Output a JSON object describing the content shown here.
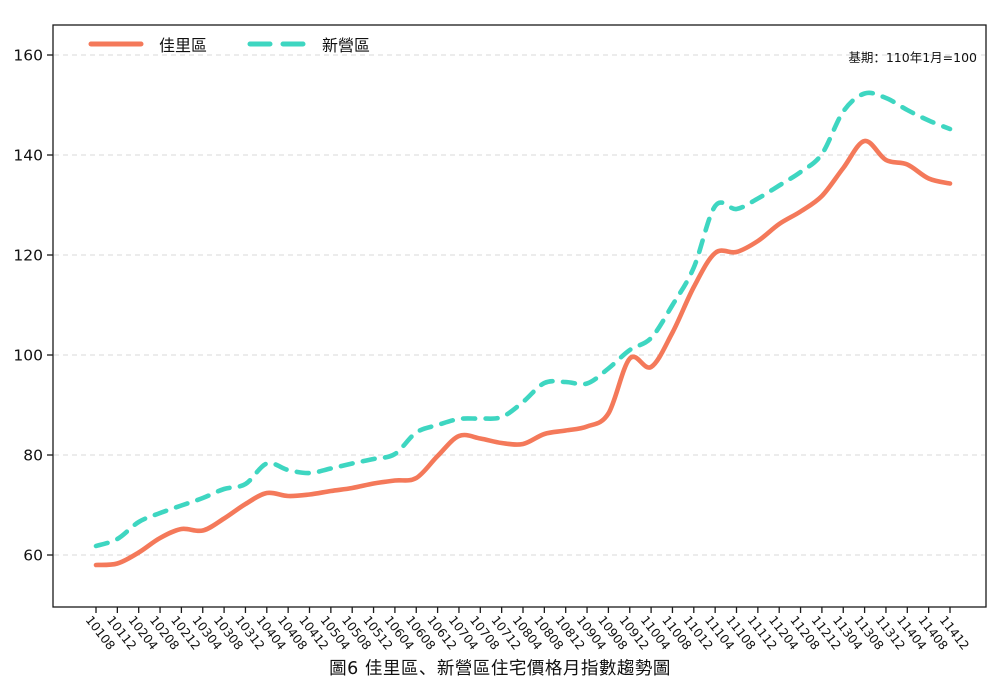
{
  "chart_data": {
    "type": "line",
    "title": "圖6  佳里區、新營區住宅價格月指數趨勢圖",
    "note": "基期：110年1月=100",
    "x_labels": [
      "10108",
      "10112",
      "10204",
      "10208",
      "10212",
      "10304",
      "10308",
      "10312",
      "10404",
      "10408",
      "10412",
      "10504",
      "10508",
      "10512",
      "10604",
      "10608",
      "10612",
      "10704",
      "10708",
      "10712",
      "10804",
      "10808",
      "10812",
      "10904",
      "10908",
      "10912",
      "11004",
      "11008",
      "11012",
      "11104",
      "11108",
      "11112",
      "11204",
      "11208",
      "11212",
      "11304",
      "11308",
      "11312",
      "11404",
      "11408",
      "11412"
    ],
    "yticks": [
      60,
      80,
      100,
      120,
      140,
      160
    ],
    "ylim": [
      49.6,
      166
    ],
    "grid": "horizontal-dashed",
    "legend_position": "top-left-inside",
    "series": [
      {
        "name": "佳里區",
        "color": "#F4795A",
        "style": "solid",
        "values": [
          58.0,
          58.3,
          60.5,
          63.4,
          65.2,
          64.9,
          67.3,
          70.2,
          72.4,
          71.8,
          72.1,
          72.8,
          73.4,
          74.3,
          74.9,
          75.4,
          79.8,
          83.8,
          83.3,
          82.4,
          82.2,
          84.2,
          84.9,
          85.7,
          88.3,
          99.3,
          97.6,
          104.5,
          113.6,
          120.4,
          120.6,
          122.8,
          126.2,
          128.7,
          131.8,
          137.4,
          142.8,
          139.0,
          138.1,
          135.3,
          134.3
        ]
      },
      {
        "name": "新營區",
        "color": "#3ED6C1",
        "style": "dashed",
        "values": [
          61.8,
          63.2,
          66.6,
          68.4,
          69.9,
          71.4,
          73.2,
          74.2,
          78.3,
          77.0,
          76.4,
          77.3,
          78.3,
          79.2,
          80.2,
          84.5,
          86.0,
          87.2,
          87.3,
          87.6,
          90.6,
          94.4,
          94.6,
          94.3,
          97.3,
          101.0,
          103.4,
          110.0,
          117.5,
          129.8,
          129.2,
          131.3,
          133.9,
          136.6,
          140.2,
          148.7,
          152.3,
          151.4,
          149.0,
          146.9,
          145.2
        ]
      }
    ],
    "axis_color": "#1a1a1a",
    "grid_color": "#d8d8d8"
  }
}
